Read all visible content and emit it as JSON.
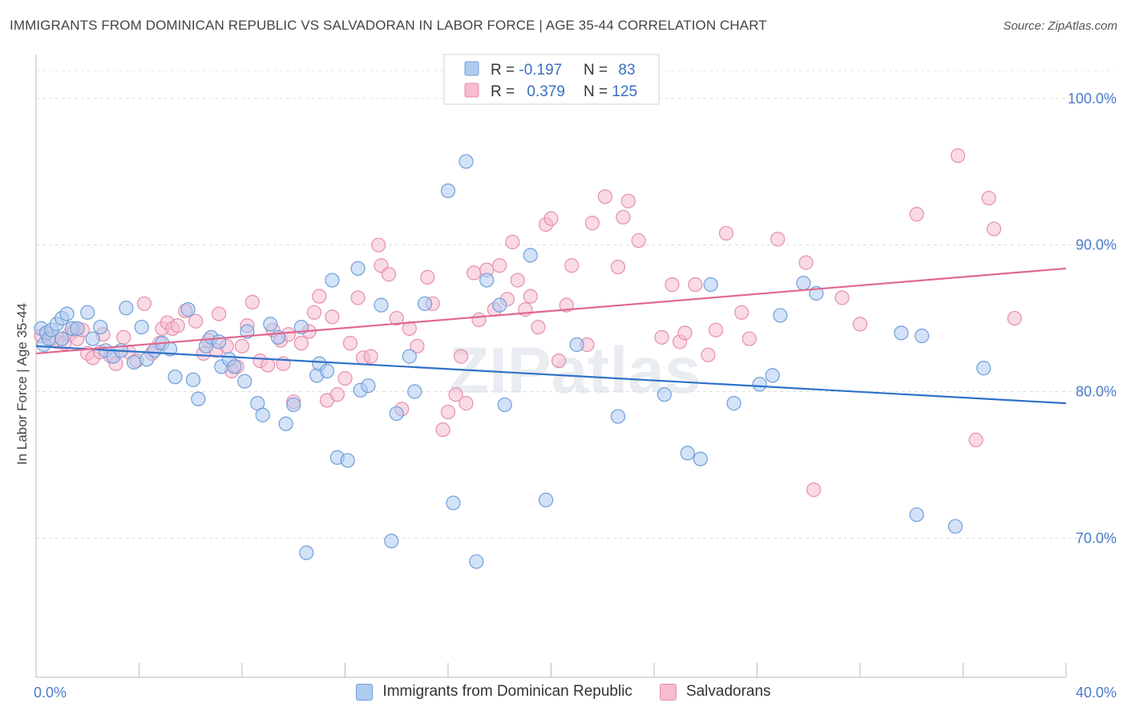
{
  "title": "IMMIGRANTS FROM DOMINICAN REPUBLIC VS SALVADORAN IN LABOR FORCE | AGE 35-44 CORRELATION CHART",
  "source": "Source: ZipAtlas.com",
  "watermark": "ZIPatlas",
  "colors": {
    "blue_fill": "#aecbf0",
    "blue_stroke": "#6f9fd8",
    "blue_line": "#2f72c8",
    "pink_fill": "#f6bccf",
    "pink_stroke": "#e58fae",
    "pink_line": "#e0688f",
    "tick_text": "#4a7cc9"
  },
  "legend": {
    "rows": [
      {
        "r_label": "R = ",
        "r_value": "-0.197",
        "n_label": "N = ",
        "n_value": "83"
      },
      {
        "r_label": "R = ",
        "r_value": "0.379",
        "n_label": "N = ",
        "n_value": "125"
      }
    ]
  },
  "bottom_legend": {
    "blue": "Immigrants from Dominican Republic",
    "pink": "Salvadorans"
  },
  "chart_data": {
    "type": "scatter",
    "title": "IMMIGRANTS FROM DOMINICAN REPUBLIC VS SALVADORAN IN LABOR FORCE | AGE 35-44 CORRELATION CHART",
    "xlabel": "",
    "ylabel": "In Labor Force | Age 35-44",
    "xlim": [
      0,
      40
    ],
    "ylim": [
      60.5,
      103
    ],
    "x_tick_labels": [
      {
        "value": 0,
        "label": "0.0%"
      },
      {
        "value": 40,
        "label": "40.0%"
      }
    ],
    "y_tick_labels": [
      {
        "value": 100,
        "label": "100.0%"
      },
      {
        "value": 90,
        "label": "90.0%"
      },
      {
        "value": 80,
        "label": "80.0%"
      },
      {
        "value": 70,
        "label": "70.0%"
      }
    ],
    "grid": true,
    "legend_position": "top-center",
    "series": [
      {
        "name": "Immigrants from Dominican Republic",
        "color": "#aecbf0",
        "trend": {
          "x": [
            0,
            40
          ],
          "y": [
            83.1,
            79.2
          ]
        },
        "points": [
          [
            0.2,
            84.3
          ],
          [
            0.3,
            83.2
          ],
          [
            0.4,
            84.0
          ],
          [
            0.5,
            83.6
          ],
          [
            0.6,
            84.2
          ],
          [
            0.8,
            84.6
          ],
          [
            1.0,
            83.6
          ],
          [
            1.0,
            85.0
          ],
          [
            1.2,
            85.3
          ],
          [
            1.4,
            84.3
          ],
          [
            1.6,
            84.3
          ],
          [
            2.0,
            85.4
          ],
          [
            2.2,
            83.6
          ],
          [
            2.5,
            84.4
          ],
          [
            2.7,
            82.8
          ],
          [
            3.0,
            82.4
          ],
          [
            3.3,
            82.8
          ],
          [
            3.5,
            85.7
          ],
          [
            3.8,
            82.0
          ],
          [
            4.1,
            84.4
          ],
          [
            4.3,
            82.2
          ],
          [
            4.6,
            82.8
          ],
          [
            4.9,
            83.3
          ],
          [
            5.2,
            82.9
          ],
          [
            5.4,
            81.0
          ],
          [
            5.9,
            85.6
          ],
          [
            6.1,
            80.8
          ],
          [
            6.3,
            79.5
          ],
          [
            6.6,
            83.1
          ],
          [
            6.8,
            83.7
          ],
          [
            7.1,
            83.4
          ],
          [
            7.2,
            81.7
          ],
          [
            7.5,
            82.2
          ],
          [
            7.7,
            81.7
          ],
          [
            8.1,
            80.7
          ],
          [
            8.2,
            84.1
          ],
          [
            8.6,
            79.2
          ],
          [
            8.8,
            78.4
          ],
          [
            9.1,
            84.6
          ],
          [
            9.4,
            83.7
          ],
          [
            9.7,
            77.8
          ],
          [
            10.0,
            79.1
          ],
          [
            10.3,
            84.4
          ],
          [
            10.5,
            69.0
          ],
          [
            10.9,
            81.1
          ],
          [
            11.0,
            81.9
          ],
          [
            11.3,
            81.4
          ],
          [
            11.5,
            87.6
          ],
          [
            11.7,
            75.5
          ],
          [
            12.1,
            75.3
          ],
          [
            12.5,
            88.4
          ],
          [
            12.6,
            80.1
          ],
          [
            12.9,
            80.4
          ],
          [
            13.4,
            85.9
          ],
          [
            13.8,
            69.8
          ],
          [
            14.0,
            78.5
          ],
          [
            14.5,
            82.4
          ],
          [
            14.7,
            80.0
          ],
          [
            15.1,
            86.0
          ],
          [
            16.0,
            93.7
          ],
          [
            16.2,
            72.4
          ],
          [
            16.7,
            95.7
          ],
          [
            17.1,
            68.4
          ],
          [
            17.5,
            87.6
          ],
          [
            18.0,
            85.9
          ],
          [
            18.2,
            79.1
          ],
          [
            19.2,
            89.3
          ],
          [
            19.8,
            72.6
          ],
          [
            21.0,
            83.2
          ],
          [
            22.6,
            78.3
          ],
          [
            24.4,
            79.8
          ],
          [
            25.3,
            75.8
          ],
          [
            25.8,
            75.4
          ],
          [
            26.2,
            87.3
          ],
          [
            27.1,
            79.2
          ],
          [
            28.1,
            80.5
          ],
          [
            28.6,
            81.1
          ],
          [
            28.9,
            85.2
          ],
          [
            29.8,
            87.4
          ],
          [
            30.3,
            86.7
          ],
          [
            33.6,
            84.0
          ],
          [
            34.2,
            71.6
          ],
          [
            34.4,
            83.8
          ],
          [
            35.7,
            70.8
          ],
          [
            36.8,
            81.6
          ]
        ]
      },
      {
        "name": "Salvadorans",
        "color": "#f6bccf",
        "trend": {
          "x": [
            0,
            40
          ],
          "y": [
            82.6,
            88.4
          ]
        },
        "points": [
          [
            0.2,
            83.8
          ],
          [
            0.4,
            84.0
          ],
          [
            0.6,
            83.6
          ],
          [
            0.8,
            83.4
          ],
          [
            1.0,
            83.6
          ],
          [
            1.1,
            83.3
          ],
          [
            1.3,
            83.9
          ],
          [
            1.5,
            84.2
          ],
          [
            1.6,
            83.6
          ],
          [
            1.8,
            84.2
          ],
          [
            2.0,
            82.6
          ],
          [
            2.2,
            82.3
          ],
          [
            2.5,
            82.7
          ],
          [
            2.6,
            83.9
          ],
          [
            2.9,
            82.4
          ],
          [
            3.1,
            81.9
          ],
          [
            3.4,
            83.7
          ],
          [
            3.6,
            82.7
          ],
          [
            3.9,
            82.1
          ],
          [
            4.2,
            86.0
          ],
          [
            4.5,
            82.6
          ],
          [
            4.8,
            83.3
          ],
          [
            4.9,
            84.3
          ],
          [
            5.1,
            84.7
          ],
          [
            5.3,
            84.3
          ],
          [
            5.5,
            84.5
          ],
          [
            5.8,
            85.5
          ],
          [
            6.2,
            84.8
          ],
          [
            6.5,
            82.6
          ],
          [
            6.7,
            83.5
          ],
          [
            7.0,
            82.8
          ],
          [
            7.1,
            85.3
          ],
          [
            7.4,
            83.1
          ],
          [
            7.6,
            81.4
          ],
          [
            7.8,
            81.7
          ],
          [
            8.0,
            83.1
          ],
          [
            8.2,
            84.5
          ],
          [
            8.4,
            86.1
          ],
          [
            8.7,
            82.1
          ],
          [
            9.0,
            81.8
          ],
          [
            9.2,
            84.2
          ],
          [
            9.5,
            83.5
          ],
          [
            9.6,
            81.9
          ],
          [
            9.8,
            83.9
          ],
          [
            10.0,
            79.3
          ],
          [
            10.3,
            83.3
          ],
          [
            10.6,
            84.1
          ],
          [
            10.8,
            85.4
          ],
          [
            11.0,
            86.5
          ],
          [
            11.3,
            79.4
          ],
          [
            11.5,
            85.1
          ],
          [
            11.7,
            79.8
          ],
          [
            12.0,
            80.9
          ],
          [
            12.2,
            83.3
          ],
          [
            12.5,
            86.4
          ],
          [
            12.7,
            82.3
          ],
          [
            13.0,
            82.4
          ],
          [
            13.3,
            90.0
          ],
          [
            13.4,
            88.6
          ],
          [
            13.7,
            88.0
          ],
          [
            14.0,
            85.0
          ],
          [
            14.2,
            78.8
          ],
          [
            14.5,
            84.3
          ],
          [
            14.8,
            83.1
          ],
          [
            15.2,
            87.8
          ],
          [
            15.4,
            86.0
          ],
          [
            15.8,
            77.4
          ],
          [
            16.0,
            78.6
          ],
          [
            16.3,
            79.8
          ],
          [
            16.5,
            82.4
          ],
          [
            16.7,
            79.2
          ],
          [
            17.0,
            88.1
          ],
          [
            17.2,
            84.9
          ],
          [
            17.5,
            88.3
          ],
          [
            17.8,
            85.6
          ],
          [
            18.0,
            88.6
          ],
          [
            18.3,
            86.3
          ],
          [
            18.5,
            90.2
          ],
          [
            18.7,
            87.6
          ],
          [
            19.0,
            85.6
          ],
          [
            19.2,
            86.5
          ],
          [
            19.5,
            84.4
          ],
          [
            19.8,
            91.4
          ],
          [
            20.0,
            91.8
          ],
          [
            20.3,
            82.1
          ],
          [
            20.6,
            85.9
          ],
          [
            20.8,
            88.6
          ],
          [
            21.4,
            83.2
          ],
          [
            21.6,
            91.5
          ],
          [
            22.1,
            93.3
          ],
          [
            22.6,
            88.5
          ],
          [
            22.8,
            91.9
          ],
          [
            23.0,
            93.0
          ],
          [
            23.4,
            90.3
          ],
          [
            24.3,
            83.7
          ],
          [
            24.7,
            87.3
          ],
          [
            25.0,
            83.4
          ],
          [
            25.2,
            84.0
          ],
          [
            25.6,
            87.3
          ],
          [
            26.1,
            82.5
          ],
          [
            26.4,
            84.2
          ],
          [
            26.8,
            90.8
          ],
          [
            27.4,
            85.4
          ],
          [
            27.7,
            83.6
          ],
          [
            28.8,
            90.4
          ],
          [
            29.9,
            88.8
          ],
          [
            30.2,
            73.3
          ],
          [
            31.3,
            86.4
          ],
          [
            32.0,
            84.6
          ],
          [
            34.2,
            92.1
          ],
          [
            35.8,
            96.1
          ],
          [
            36.5,
            76.7
          ],
          [
            37.0,
            93.2
          ],
          [
            37.2,
            91.1
          ],
          [
            38.0,
            85.0
          ]
        ]
      }
    ]
  }
}
